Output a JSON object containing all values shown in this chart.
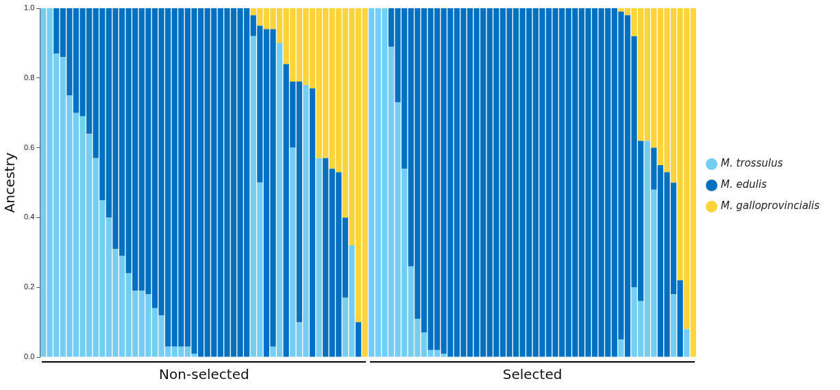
{
  "chart_data": {
    "type": "bar",
    "stacked": true,
    "ylabel": "Ancestry",
    "ylim": [
      0,
      1
    ],
    "yticks": [
      {
        "value": 0,
        "label": "0.0"
      },
      {
        "value": 0.2,
        "label": "0.2"
      },
      {
        "value": 0.4,
        "label": "0.4"
      },
      {
        "value": 0.6,
        "label": "0.6"
      },
      {
        "value": 0.8,
        "label": "0.8"
      },
      {
        "value": 1,
        "label": "1.0"
      }
    ],
    "grid": false,
    "legend": "right",
    "tick_labels": "y",
    "annotations": [
      "Non-selected",
      "Selected"
    ],
    "categories": [
      null,
      null,
      null,
      null,
      null,
      null,
      null,
      null,
      null,
      null,
      null,
      null,
      null,
      null,
      null,
      null,
      null,
      null,
      null,
      null,
      null,
      null,
      null,
      null,
      null,
      null,
      null,
      null,
      null,
      null,
      null,
      null,
      null,
      null,
      null,
      null,
      null,
      null,
      null,
      null,
      null,
      null,
      null,
      null,
      null,
      null,
      null,
      null,
      null,
      null,
      null,
      null,
      null,
      null,
      null,
      null,
      null,
      null,
      null,
      null,
      null,
      null,
      null,
      null,
      null,
      null,
      null,
      null,
      null,
      null,
      null,
      null,
      null,
      null,
      null,
      null,
      null,
      null,
      null,
      null,
      null,
      null,
      null,
      null,
      null,
      null,
      null,
      null,
      null,
      null,
      null,
      null,
      null,
      null,
      null,
      null,
      null,
      null,
      null,
      null
    ],
    "series": [
      {
        "name": "M. trossulus",
        "color": "#74cdf3",
        "values": [
          1,
          1,
          0.87,
          0.86,
          0.75,
          0.7,
          0.69,
          0.64,
          0.57,
          0.45,
          0.4,
          0.31,
          0.29,
          0.24,
          0.19,
          0.19,
          0.18,
          0.14,
          0.12,
          0.03,
          0.03,
          0.03,
          0.03,
          0.01,
          0,
          0,
          0,
          0,
          0,
          0,
          0,
          0,
          0.92,
          0.5,
          0,
          0.03,
          0.9,
          0,
          0.6,
          0.1,
          0.78,
          0,
          0.57,
          0,
          0,
          0,
          0.17,
          0.32,
          0,
          0,
          1,
          1,
          1,
          0.89,
          0.73,
          0.54,
          0.26,
          0.11,
          0.07,
          0.02,
          0.02,
          0.01,
          0,
          0,
          0,
          0,
          0,
          0,
          0,
          0,
          0,
          0,
          0,
          0,
          0,
          0,
          0,
          0,
          0,
          0,
          0,
          0,
          0,
          0,
          0,
          0,
          0,
          0,
          0.05,
          0,
          0.2,
          0.16,
          0.62,
          0.48,
          0,
          0,
          0.18,
          0,
          0.08,
          0
        ]
      },
      {
        "name": "M. edulis",
        "color": "#0070c0",
        "values": [
          0,
          0,
          0.13,
          0.14,
          0.25,
          0.3,
          0.31,
          0.36,
          0.43,
          0.55,
          0.6,
          0.69,
          0.71,
          0.76,
          0.81,
          0.81,
          0.82,
          0.86,
          0.88,
          0.97,
          0.97,
          0.97,
          0.97,
          0.99,
          1,
          1,
          1,
          1,
          1,
          1,
          1,
          1,
          0.06,
          0.45,
          0.94,
          0.91,
          0,
          0.84,
          0.19,
          0.69,
          0,
          0.77,
          0,
          0.57,
          0.54,
          0.53,
          0.23,
          0,
          0.1,
          0,
          0,
          0,
          0,
          0.11,
          0.27,
          0.46,
          0.74,
          0.89,
          0.93,
          0.98,
          0.98,
          0.99,
          1,
          1,
          1,
          1,
          1,
          1,
          1,
          1,
          1,
          1,
          1,
          1,
          1,
          1,
          1,
          1,
          1,
          1,
          1,
          1,
          1,
          1,
          1,
          1,
          1,
          1,
          0.94,
          0.98,
          0.72,
          0.46,
          0,
          0.12,
          0.55,
          0.53,
          0.32,
          0.22,
          0,
          0
        ]
      },
      {
        "name": "M. galloprovincialis",
        "color": "#ffd33a",
        "values": [
          0,
          0,
          0,
          0,
          0,
          0,
          0,
          0,
          0,
          0,
          0,
          0,
          0,
          0,
          0,
          0,
          0,
          0,
          0,
          0,
          0,
          0,
          0,
          0,
          0,
          0,
          0,
          0,
          0,
          0,
          0,
          0,
          0.02,
          0.05,
          0.06,
          0.06,
          0.1,
          0.16,
          0.21,
          0.21,
          0.22,
          0.23,
          0.43,
          0.43,
          0.46,
          0.47,
          0.6,
          0.68,
          0.9,
          1,
          0,
          0,
          0,
          0,
          0,
          0,
          0,
          0,
          0,
          0,
          0,
          0,
          0,
          0,
          0,
          0,
          0,
          0,
          0,
          0,
          0,
          0,
          0,
          0,
          0,
          0,
          0,
          0,
          0,
          0,
          0,
          0,
          0,
          0,
          0,
          0,
          0,
          0,
          0.01,
          0.02,
          0.08,
          0.38,
          0.38,
          0.4,
          0.45,
          0.47,
          0.5,
          0.78,
          0.92,
          1
        ]
      }
    ]
  }
}
